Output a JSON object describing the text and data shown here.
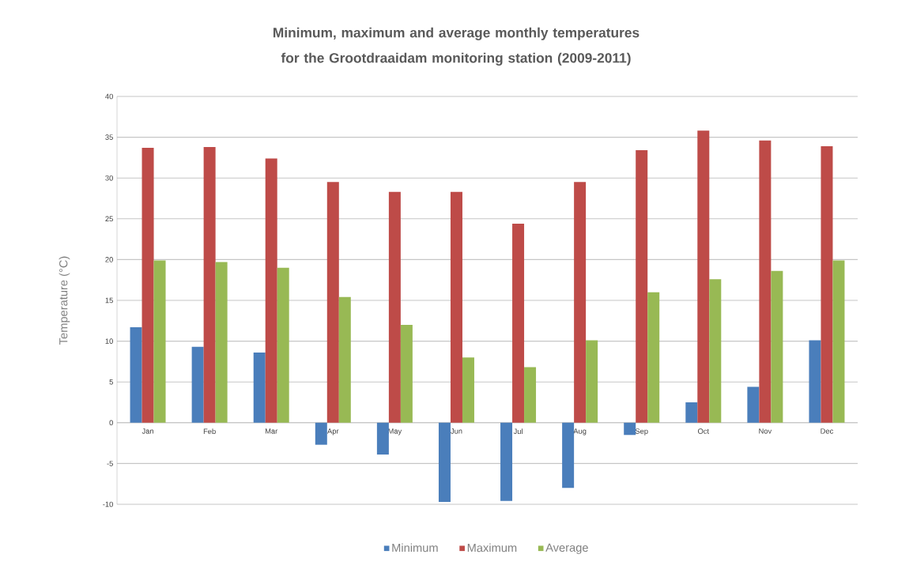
{
  "chart_data": {
    "type": "bar",
    "title": "Minimum, maximum and average monthly temperatures for the Grootdraaidam monitoring station (2009-2011)",
    "ylabel": "Temperature  (°C)",
    "categories": [
      "Jan",
      "Feb",
      "Mar",
      "Apr",
      "May",
      "Jun",
      "Jul",
      "Aug",
      "Sep",
      "Oct",
      "Nov",
      "Dec"
    ],
    "series": [
      {
        "name": "Minimum",
        "color": "#4a7ebb",
        "values": [
          11.7,
          9.3,
          8.6,
          -2.7,
          -3.9,
          -9.7,
          -9.6,
          -8.0,
          -1.5,
          2.5,
          4.4,
          10.1
        ]
      },
      {
        "name": "Maximum",
        "color": "#be4b48",
        "values": [
          33.7,
          33.8,
          32.4,
          29.5,
          28.3,
          28.3,
          24.4,
          29.5,
          33.4,
          35.8,
          34.6,
          33.9
        ]
      },
      {
        "name": "Average",
        "color": "#98b954",
        "values": [
          19.9,
          19.7,
          19.0,
          15.4,
          12.0,
          8.0,
          6.8,
          10.1,
          16.0,
          17.6,
          18.6,
          19.9
        ]
      }
    ],
    "ylim": [
      -10,
      40
    ],
    "yticks": [
      -10,
      -5,
      0,
      5,
      10,
      15,
      20,
      25,
      30,
      35,
      40
    ],
    "grid": "y",
    "legend": "bottom"
  }
}
